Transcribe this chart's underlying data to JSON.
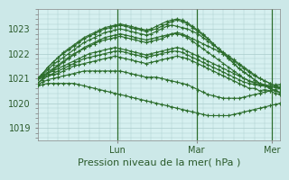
{
  "xlabel": "Pression niveau de la mer( hPa )",
  "bg_color": "#cce8e8",
  "plot_bg_color": "#d6f0f0",
  "grid_color": "#aacccc",
  "line_color": "#2d6e2d",
  "white_bg": "#e8f4f4",
  "ylim": [
    1018.5,
    1023.8
  ],
  "yticks": [
    1019,
    1020,
    1021,
    1022,
    1023
  ],
  "day_labels": [
    "Lun",
    "Mar",
    "Mer"
  ],
  "day_positions": [
    0.33,
    0.655,
    0.965
  ],
  "total_steps": 48,
  "lines": [
    [
      1021.0,
      1021.05,
      1021.1,
      1021.15,
      1021.2,
      1021.3,
      1021.4,
      1021.5,
      1021.55,
      1021.6,
      1021.65,
      1021.7,
      1021.75,
      1021.8,
      1021.85,
      1021.9,
      1021.85,
      1021.8,
      1021.75,
      1021.7,
      1021.65,
      1021.6,
      1021.65,
      1021.7,
      1021.75,
      1021.8,
      1021.85,
      1021.9,
      1021.85,
      1021.8,
      1021.7,
      1021.6,
      1021.5,
      1021.4,
      1021.3,
      1021.2,
      1021.1,
      1021.0,
      1020.9,
      1020.8,
      1020.7,
      1020.6,
      1020.6,
      1020.5,
      1020.55,
      1020.5,
      1020.4,
      1020.35
    ],
    [
      1021.0,
      1021.1,
      1021.2,
      1021.3,
      1021.4,
      1021.5,
      1021.6,
      1021.7,
      1021.8,
      1021.9,
      1022.0,
      1022.05,
      1022.1,
      1022.15,
      1022.2,
      1022.25,
      1022.2,
      1022.15,
      1022.1,
      1022.05,
      1022.0,
      1021.95,
      1022.0,
      1022.05,
      1022.1,
      1022.15,
      1022.2,
      1022.25,
      1022.2,
      1022.1,
      1022.0,
      1021.9,
      1021.8,
      1021.7,
      1021.6,
      1021.5,
      1021.4,
      1021.3,
      1021.2,
      1021.1,
      1021.0,
      1020.9,
      1020.85,
      1020.8,
      1020.75,
      1020.7,
      1020.65,
      1020.6
    ],
    [
      1021.0,
      1021.1,
      1021.25,
      1021.4,
      1021.55,
      1021.7,
      1021.85,
      1022.0,
      1022.1,
      1022.2,
      1022.3,
      1022.4,
      1022.5,
      1022.55,
      1022.6,
      1022.65,
      1022.7,
      1022.65,
      1022.6,
      1022.55,
      1022.5,
      1022.45,
      1022.5,
      1022.55,
      1022.6,
      1022.7,
      1022.8,
      1022.85,
      1022.8,
      1022.7,
      1022.6,
      1022.5,
      1022.4,
      1022.3,
      1022.2,
      1022.1,
      1022.0,
      1021.85,
      1021.7,
      1021.55,
      1021.4,
      1021.25,
      1021.1,
      1021.0,
      1020.9,
      1020.8,
      1020.7,
      1020.6
    ],
    [
      1021.0,
      1021.15,
      1021.35,
      1021.55,
      1021.7,
      1021.85,
      1022.0,
      1022.15,
      1022.3,
      1022.45,
      1022.55,
      1022.65,
      1022.75,
      1022.85,
      1022.9,
      1022.95,
      1023.0,
      1022.95,
      1022.9,
      1022.85,
      1022.8,
      1022.75,
      1022.8,
      1022.9,
      1023.0,
      1023.1,
      1023.15,
      1023.1,
      1023.05,
      1023.0,
      1022.9,
      1022.8,
      1022.65,
      1022.5,
      1022.35,
      1022.2,
      1022.05,
      1021.9,
      1021.75,
      1021.6,
      1021.45,
      1021.3,
      1021.15,
      1021.0,
      1020.9,
      1020.8,
      1020.7,
      1020.65
    ],
    [
      1021.0,
      1021.2,
      1021.45,
      1021.65,
      1021.85,
      1022.0,
      1022.15,
      1022.3,
      1022.45,
      1022.6,
      1022.7,
      1022.8,
      1022.9,
      1023.0,
      1023.05,
      1023.1,
      1023.15,
      1023.1,
      1023.05,
      1023.0,
      1022.95,
      1022.9,
      1022.95,
      1023.0,
      1023.1,
      1023.2,
      1023.3,
      1023.35,
      1023.3,
      1023.2,
      1023.05,
      1022.9,
      1022.75,
      1022.6,
      1022.4,
      1022.2,
      1022.0,
      1021.8,
      1021.6,
      1021.4,
      1021.25,
      1021.1,
      1020.95,
      1020.8,
      1020.7,
      1020.6,
      1020.5,
      1020.45
    ],
    [
      1021.0,
      1021.2,
      1021.45,
      1021.65,
      1021.85,
      1022.05,
      1022.2,
      1022.35,
      1022.5,
      1022.65,
      1022.75,
      1022.85,
      1022.95,
      1023.05,
      1023.1,
      1023.15,
      1023.2,
      1023.15,
      1023.1,
      1023.05,
      1023.0,
      1022.95,
      1023.0,
      1023.1,
      1023.2,
      1023.3,
      1023.35,
      1023.4,
      1023.35,
      1023.25,
      1023.1,
      1022.95,
      1022.8,
      1022.6,
      1022.4,
      1022.2,
      1022.0,
      1021.8,
      1021.6,
      1021.4,
      1021.25,
      1021.1,
      1020.95,
      1020.8,
      1020.7,
      1020.6,
      1020.5,
      1020.4
    ],
    [
      1020.8,
      1021.0,
      1021.2,
      1021.35,
      1021.5,
      1021.65,
      1021.8,
      1021.95,
      1022.1,
      1022.25,
      1022.35,
      1022.45,
      1022.55,
      1022.65,
      1022.7,
      1022.75,
      1022.8,
      1022.75,
      1022.7,
      1022.65,
      1022.6,
      1022.55,
      1022.6,
      1022.65,
      1022.7,
      1022.75,
      1022.8,
      1022.8,
      1022.75,
      1022.65,
      1022.5,
      1022.35,
      1022.2,
      1022.05,
      1021.9,
      1021.75,
      1021.6,
      1021.45,
      1021.3,
      1021.15,
      1021.0,
      1020.9,
      1020.8,
      1020.75,
      1020.7,
      1020.65,
      1020.65,
      1020.6
    ],
    [
      1020.8,
      1020.95,
      1021.1,
      1021.2,
      1021.3,
      1021.4,
      1021.5,
      1021.6,
      1021.7,
      1021.8,
      1021.85,
      1021.9,
      1021.95,
      1022.0,
      1022.05,
      1022.1,
      1022.1,
      1022.05,
      1022.0,
      1021.95,
      1021.9,
      1021.85,
      1021.9,
      1021.95,
      1022.0,
      1022.05,
      1022.1,
      1022.1,
      1022.05,
      1021.95,
      1021.85,
      1021.75,
      1021.65,
      1021.55,
      1021.45,
      1021.35,
      1021.25,
      1021.15,
      1021.05,
      1020.95,
      1020.85,
      1020.8,
      1020.75,
      1020.7,
      1020.7,
      1020.7,
      1020.75,
      1020.75
    ],
    [
      1020.75,
      1020.85,
      1020.95,
      1021.0,
      1021.05,
      1021.1,
      1021.15,
      1021.2,
      1021.25,
      1021.3,
      1021.3,
      1021.3,
      1021.3,
      1021.3,
      1021.3,
      1021.3,
      1021.3,
      1021.25,
      1021.2,
      1021.15,
      1021.1,
      1021.05,
      1021.05,
      1021.05,
      1021.0,
      1020.95,
      1020.9,
      1020.85,
      1020.8,
      1020.75,
      1020.65,
      1020.55,
      1020.45,
      1020.35,
      1020.3,
      1020.25,
      1020.2,
      1020.2,
      1020.2,
      1020.2,
      1020.25,
      1020.3,
      1020.35,
      1020.4,
      1020.45,
      1020.5,
      1020.55,
      1020.6
    ],
    [
      1020.7,
      1020.75,
      1020.8,
      1020.8,
      1020.8,
      1020.8,
      1020.8,
      1020.8,
      1020.75,
      1020.7,
      1020.65,
      1020.6,
      1020.55,
      1020.5,
      1020.45,
      1020.4,
      1020.35,
      1020.3,
      1020.25,
      1020.2,
      1020.15,
      1020.1,
      1020.05,
      1020.0,
      1019.95,
      1019.9,
      1019.85,
      1019.8,
      1019.75,
      1019.7,
      1019.65,
      1019.6,
      1019.55,
      1019.5,
      1019.5,
      1019.5,
      1019.5,
      1019.5,
      1019.55,
      1019.6,
      1019.65,
      1019.7,
      1019.75,
      1019.8,
      1019.85,
      1019.9,
      1019.95,
      1020.0
    ]
  ]
}
